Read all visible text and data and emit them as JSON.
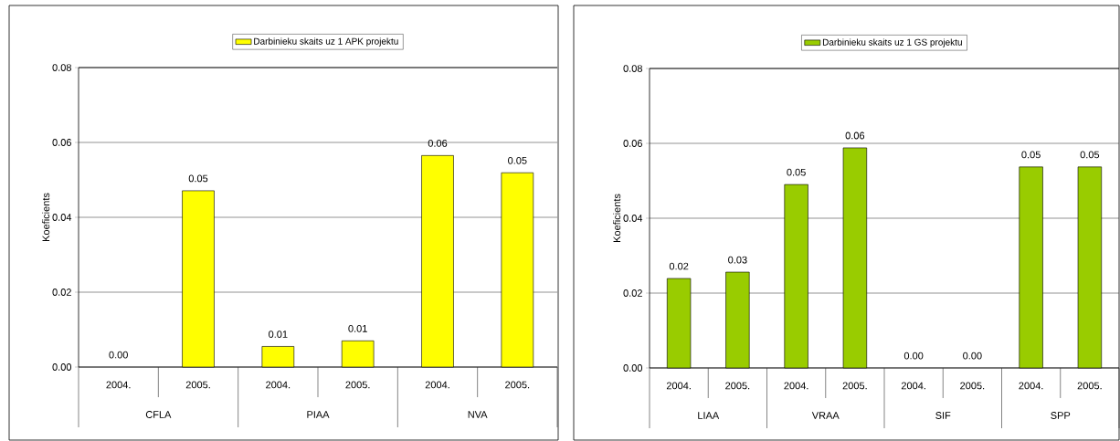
{
  "chart_data": [
    {
      "type": "bar",
      "ylabel": "Koeficients",
      "categories": [
        "2004.",
        "2005.",
        "2004.",
        "2005.",
        "2004.",
        "2005."
      ],
      "series": [
        {
          "name": "Darbinieku skaits uz 1 APK projektu",
          "color": "#ffff00",
          "values": [
            0,
            0.0471,
            0.0055,
            0.007,
            0.0565,
            0.0519
          ],
          "value_labels": [
            "0.00",
            "0.05",
            "0.01",
            "0.01",
            "0.06",
            "0.05"
          ]
        }
      ],
      "annotations": [
        "CFLA",
        "PIAA",
        "NVA"
      ],
      "ylim": [
        0,
        0.08
      ],
      "yticks": [
        {
          "value": 0,
          "label": "0.00"
        },
        {
          "value": 0.02,
          "label": "0.02"
        },
        {
          "value": 0.04,
          "label": "0.04"
        },
        {
          "value": 0.06,
          "label": "0.06"
        },
        {
          "value": 0.08,
          "label": "0.08"
        }
      ],
      "grid": "y",
      "legend": "top"
    },
    {
      "type": "bar",
      "ylabel": "Koeficients",
      "categories": [
        "2004.",
        "2005.",
        "2004.",
        "2005.",
        "2004.",
        "2005.",
        "2004.",
        "2005."
      ],
      "series": [
        {
          "name": "Darbinieku skaits uz 1 GS projektu",
          "color": "#99cc00",
          "values": [
            0.0239,
            0.0256,
            0.049,
            0.0588,
            0,
            0,
            0.0537,
            0.0537
          ],
          "value_labels": [
            "0.02",
            "0.03",
            "0.05",
            "0.06",
            "0.00",
            "0.00",
            "0.05",
            "0.05"
          ]
        }
      ],
      "annotations": [
        "LIAA",
        "VRAA",
        "SIF",
        "SPP"
      ],
      "ylim": [
        0,
        0.08
      ],
      "yticks": [
        {
          "value": 0,
          "label": "0.00"
        },
        {
          "value": 0.02,
          "label": "0.02"
        },
        {
          "value": 0.04,
          "label": "0.04"
        },
        {
          "value": 0.06,
          "label": "0.06"
        },
        {
          "value": 0.08,
          "label": "0.08"
        }
      ],
      "grid": "y",
      "legend": "top"
    }
  ]
}
